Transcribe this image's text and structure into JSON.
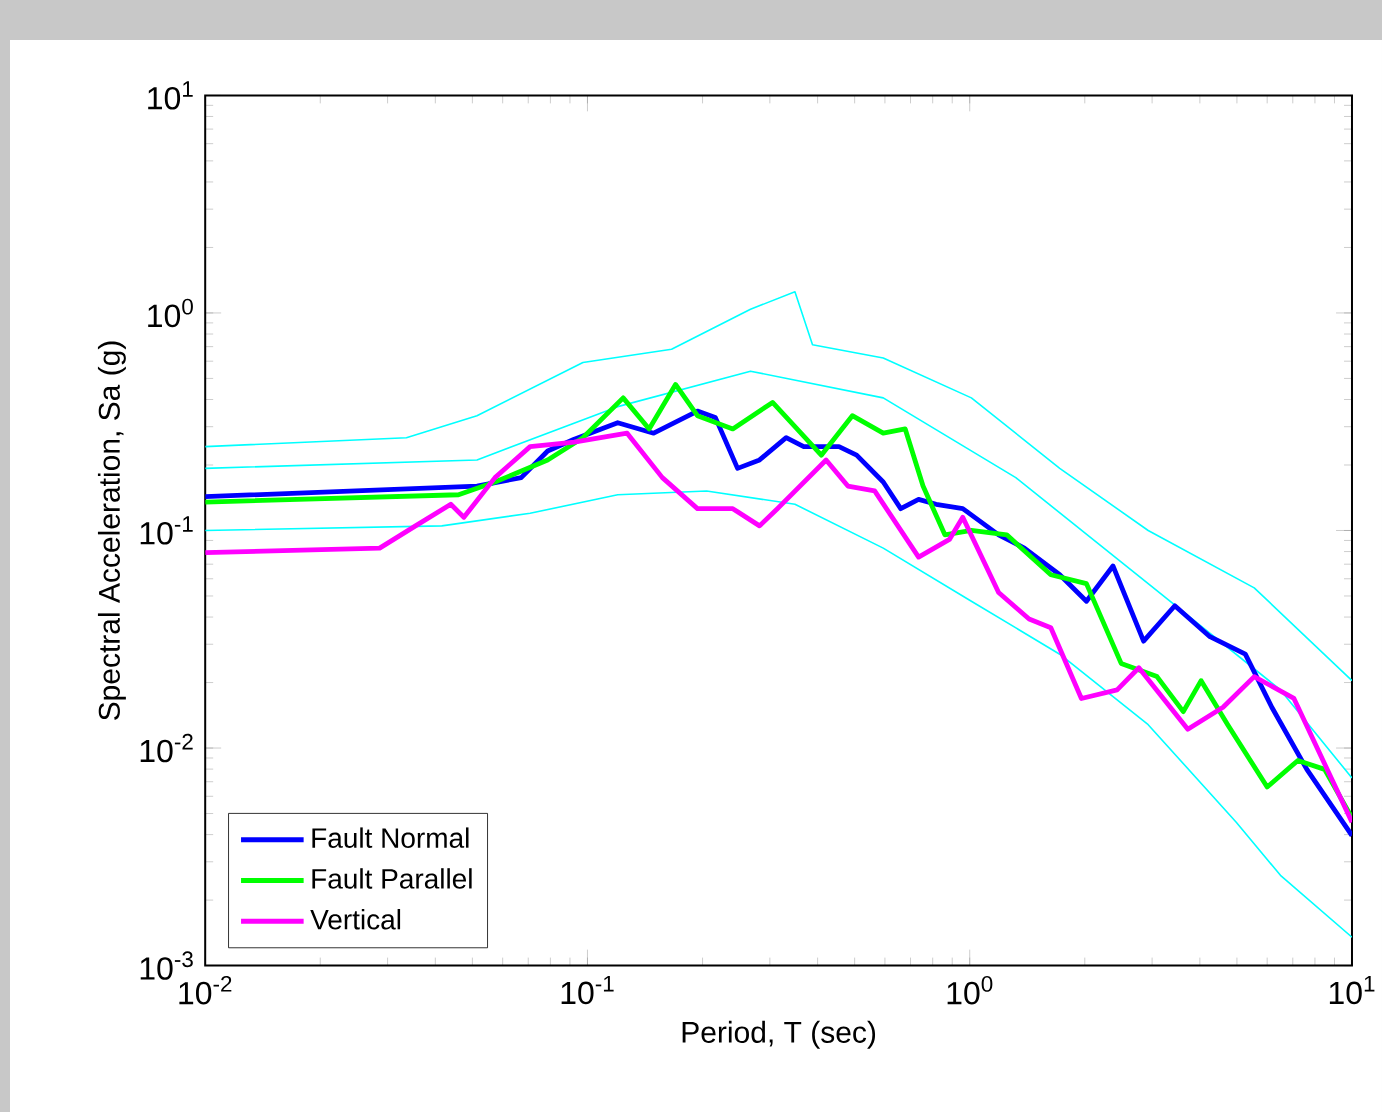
{
  "chart_data": {
    "type": "line",
    "xlabel": "Period, T (sec)",
    "ylabel": "Spectral Acceleration, Sa (g)",
    "log": "xy",
    "xlim": [
      0.01,
      10
    ],
    "ylim": [
      0.001,
      10
    ],
    "xticks": [
      {
        "value": 0.01,
        "label": "10$^{-2}$"
      },
      {
        "value": 0.1,
        "label": "10$^{-1}$"
      },
      {
        "value": 1,
        "label": "10$^{0}$"
      },
      {
        "value": 10,
        "label": "10$^{1}$"
      }
    ],
    "yticks": [
      {
        "value": 0.001,
        "label": "10$^{-3}$"
      },
      {
        "value": 0.01,
        "label": "10$^{-2}$"
      },
      {
        "value": 0.1,
        "label": "10$^{-1}$"
      },
      {
        "value": 1,
        "label": "10$^{0}$"
      },
      {
        "value": 10,
        "label": "10$^{1}$"
      }
    ],
    "legend": "bottom left",
    "marker": "none",
    "line_style": "solid",
    "series": [
      {
        "color": "#00ffff",
        "x": [
          0.01,
          0.0336,
          0.0514,
          0.0973,
          0.166,
          0.267,
          0.349,
          0.388,
          0.594,
          1.01,
          1.72,
          2.93,
          5.55,
          10
        ],
        "values": [
          0.243,
          0.267,
          0.337,
          0.592,
          0.681,
          1.04,
          1.25,
          0.714,
          0.621,
          0.407,
          0.193,
          0.1,
          0.0545,
          0.0204
        ]
      },
      {
        "color": "#00ffff",
        "x": [
          0.01,
          0.0514,
          0.12,
          0.267,
          0.594,
          1.32,
          2.93,
          6.5,
          10
        ],
        "values": [
          0.193,
          0.211,
          0.371,
          0.54,
          0.407,
          0.175,
          0.057,
          0.0185,
          0.00728
        ]
      },
      {
        "color": "#00ffff",
        "x": [
          0.01,
          0.0416,
          0.0708,
          0.12,
          0.205,
          0.349,
          0.594,
          1.01,
          1.72,
          2.93,
          4.98,
          6.5,
          10
        ],
        "values": [
          0.1,
          0.105,
          0.12,
          0.146,
          0.152,
          0.132,
          0.083,
          0.0473,
          0.027,
          0.0128,
          0.00456,
          0.0026,
          0.00135
        ]
      },
      {
        "name": "Fault Normal",
        "color": "#0000ff",
        "x": [
          0.01,
          0.0514,
          0.0671,
          0.0787,
          0.092,
          0.12,
          0.149,
          0.194,
          0.216,
          0.247,
          0.282,
          0.331,
          0.368,
          0.455,
          0.506,
          0.594,
          0.66,
          0.735,
          0.817,
          0.959,
          1.19,
          1.39,
          1.72,
          2.02,
          2.37,
          2.85,
          3.44,
          4.25,
          5.26,
          6.17,
          7.62,
          10
        ],
        "values": [
          0.143,
          0.16,
          0.175,
          0.232,
          0.262,
          0.313,
          0.28,
          0.354,
          0.331,
          0.193,
          0.211,
          0.267,
          0.243,
          0.243,
          0.222,
          0.167,
          0.126,
          0.139,
          0.132,
          0.126,
          0.0955,
          0.083,
          0.0626,
          0.0473,
          0.0687,
          0.031,
          0.0451,
          0.0325,
          0.027,
          0.0154,
          0.00798,
          0.00396
        ]
      },
      {
        "name": "Fault Parallel",
        "color": "#00ff00",
        "x": [
          0.01,
          0.046,
          0.0573,
          0.0787,
          0.0973,
          0.124,
          0.145,
          0.17,
          0.194,
          0.24,
          0.305,
          0.409,
          0.493,
          0.594,
          0.678,
          0.755,
          0.861,
          1.01,
          1.25,
          1.63,
          2.02,
          2.49,
          3.09,
          3.62,
          4.03,
          4.73,
          6.0,
          7.22,
          8.48,
          10
        ],
        "values": [
          0.135,
          0.146,
          0.167,
          0.211,
          0.267,
          0.407,
          0.293,
          0.469,
          0.337,
          0.293,
          0.388,
          0.222,
          0.337,
          0.28,
          0.293,
          0.16,
          0.0955,
          0.1,
          0.0955,
          0.0626,
          0.057,
          0.0245,
          0.0213,
          0.0147,
          0.0204,
          0.0128,
          0.00662,
          0.00877,
          0.00798,
          0.00478
        ]
      },
      {
        "name": "Vertical",
        "color": "#ff00ff",
        "x": [
          0.01,
          0.0286,
          0.0355,
          0.0439,
          0.0475,
          0.0573,
          0.0708,
          0.0923,
          0.127,
          0.157,
          0.194,
          0.24,
          0.282,
          0.314,
          0.421,
          0.48,
          0.564,
          0.735,
          0.885,
          0.959,
          1.19,
          1.43,
          1.63,
          1.96,
          2.43,
          2.77,
          3.72,
          4.6,
          5.55,
          7.05,
          10
        ],
        "values": [
          0.0791,
          0.083,
          0.105,
          0.132,
          0.115,
          0.175,
          0.243,
          0.255,
          0.28,
          0.175,
          0.126,
          0.126,
          0.105,
          0.126,
          0.211,
          0.16,
          0.152,
          0.0755,
          0.091,
          0.115,
          0.0519,
          0.0392,
          0.0357,
          0.0169,
          0.0185,
          0.0234,
          0.0122,
          0.0154,
          0.0213,
          0.0169,
          0.00456
        ]
      }
    ]
  }
}
